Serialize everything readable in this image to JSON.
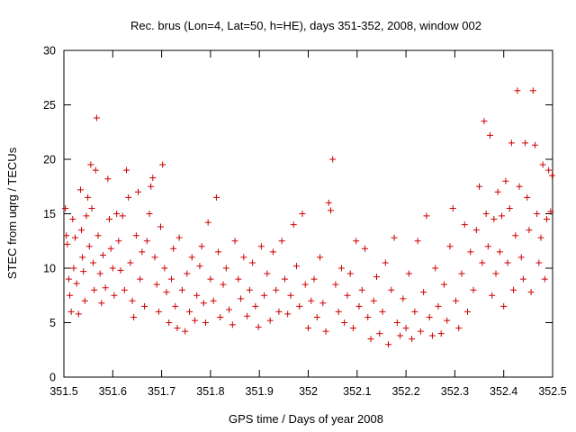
{
  "chart_data": {
    "type": "scatter",
    "title": "Rec. brus (Lon=4, Lat=50, h=HE), days 351-352, 2008, window 002",
    "xlabel": "GPS time / Days of year 2008",
    "ylabel": "STEC from uqrg / TECUs",
    "xlim": [
      351.5,
      352.5
    ],
    "ylim": [
      0,
      30
    ],
    "x_ticks": [
      "351.5",
      "351.6",
      "351.7",
      "351.8",
      "351.9",
      "352",
      "352.1",
      "352.2",
      "352.3",
      "352.4",
      "352.5"
    ],
    "y_ticks": [
      "0",
      "5",
      "10",
      "15",
      "20",
      "25",
      "30"
    ],
    "grid": false,
    "marker": "+",
    "marker_color": "#cc0000",
    "series": [
      {
        "points": [
          [
            351.503,
            15.5
          ],
          [
            351.505,
            13.0
          ],
          [
            351.507,
            12.2
          ],
          [
            351.51,
            9.0
          ],
          [
            351.512,
            7.5
          ],
          [
            351.515,
            6.0
          ],
          [
            351.518,
            14.5
          ],
          [
            351.52,
            10.0
          ],
          [
            351.523,
            12.8
          ],
          [
            351.526,
            8.6
          ],
          [
            351.53,
            5.8
          ],
          [
            351.534,
            17.2
          ],
          [
            351.536,
            13.5
          ],
          [
            351.538,
            11.0
          ],
          [
            351.54,
            9.7
          ],
          [
            351.543,
            7.0
          ],
          [
            351.546,
            14.8
          ],
          [
            351.549,
            16.5
          ],
          [
            351.552,
            12.0
          ],
          [
            351.555,
            19.5
          ],
          [
            351.557,
            15.5
          ],
          [
            351.56,
            10.5
          ],
          [
            351.562,
            8.0
          ],
          [
            351.565,
            19.0
          ],
          [
            351.567,
            23.8
          ],
          [
            351.57,
            13.0
          ],
          [
            351.574,
            9.5
          ],
          [
            351.577,
            6.8
          ],
          [
            351.58,
            11.2
          ],
          [
            351.585,
            8.2
          ],
          [
            351.59,
            18.2
          ],
          [
            351.593,
            14.5
          ],
          [
            351.596,
            11.8
          ],
          [
            351.6,
            10.0
          ],
          [
            351.603,
            7.5
          ],
          [
            351.608,
            15.0
          ],
          [
            351.612,
            12.5
          ],
          [
            351.616,
            9.8
          ],
          [
            351.62,
            14.8
          ],
          [
            351.624,
            8.0
          ],
          [
            351.628,
            19.0
          ],
          [
            351.632,
            16.5
          ],
          [
            351.636,
            10.5
          ],
          [
            351.64,
            7.0
          ],
          [
            351.643,
            5.5
          ],
          [
            351.648,
            13.0
          ],
          [
            351.652,
            17.0
          ],
          [
            351.656,
            9.0
          ],
          [
            351.66,
            11.5
          ],
          [
            351.665,
            6.5
          ],
          [
            351.67,
            12.5
          ],
          [
            351.675,
            15.0
          ],
          [
            351.678,
            17.5
          ],
          [
            351.682,
            18.3
          ],
          [
            351.686,
            11.0
          ],
          [
            351.69,
            8.5
          ],
          [
            351.694,
            6.0
          ],
          [
            351.698,
            13.8
          ],
          [
            351.702,
            19.5
          ],
          [
            351.706,
            10.0
          ],
          [
            351.71,
            7.8
          ],
          [
            351.715,
            5.0
          ],
          [
            351.72,
            9.0
          ],
          [
            351.724,
            11.8
          ],
          [
            351.728,
            6.5
          ],
          [
            351.732,
            4.5
          ],
          [
            351.736,
            12.8
          ],
          [
            351.742,
            8.0
          ],
          [
            351.748,
            4.2
          ],
          [
            351.752,
            9.5
          ],
          [
            351.757,
            6.0
          ],
          [
            351.762,
            11.0
          ],
          [
            351.768,
            5.2
          ],
          [
            351.772,
            7.5
          ],
          [
            351.778,
            10.2
          ],
          [
            351.782,
            12.0
          ],
          [
            351.786,
            6.8
          ],
          [
            351.79,
            5.0
          ],
          [
            351.795,
            14.2
          ],
          [
            351.8,
            9.0
          ],
          [
            351.806,
            7.0
          ],
          [
            351.812,
            16.5
          ],
          [
            351.816,
            11.5
          ],
          [
            351.82,
            5.5
          ],
          [
            351.826,
            8.5
          ],
          [
            351.832,
            10.0
          ],
          [
            351.838,
            6.2
          ],
          [
            351.845,
            4.8
          ],
          [
            351.85,
            12.5
          ],
          [
            351.857,
            9.0
          ],
          [
            351.862,
            7.2
          ],
          [
            351.868,
            11.0
          ],
          [
            351.875,
            5.6
          ],
          [
            351.88,
            8.0
          ],
          [
            351.886,
            10.5
          ],
          [
            351.892,
            6.5
          ],
          [
            351.898,
            4.6
          ],
          [
            351.904,
            12.0
          ],
          [
            351.91,
            7.5
          ],
          [
            351.916,
            9.5
          ],
          [
            351.922,
            5.2
          ],
          [
            351.928,
            11.5
          ],
          [
            351.934,
            8.0
          ],
          [
            351.94,
            6.0
          ],
          [
            351.946,
            12.5
          ],
          [
            351.952,
            9.0
          ],
          [
            351.958,
            5.8
          ],
          [
            351.964,
            7.5
          ],
          [
            351.97,
            14.0
          ],
          [
            351.976,
            10.2
          ],
          [
            351.982,
            6.5
          ],
          [
            351.988,
            15.0
          ],
          [
            351.994,
            8.5
          ],
          [
            352.0,
            4.5
          ],
          [
            352.006,
            7.0
          ],
          [
            352.012,
            9.0
          ],
          [
            352.018,
            5.5
          ],
          [
            352.024,
            11.0
          ],
          [
            352.03,
            6.8
          ],
          [
            352.036,
            4.2
          ],
          [
            352.042,
            16.0
          ],
          [
            352.046,
            15.3
          ],
          [
            352.05,
            20.0
          ],
          [
            352.056,
            8.5
          ],
          [
            352.062,
            6.0
          ],
          [
            352.068,
            10.0
          ],
          [
            352.074,
            5.0
          ],
          [
            352.08,
            7.5
          ],
          [
            352.086,
            9.5
          ],
          [
            352.092,
            4.5
          ],
          [
            352.098,
            12.5
          ],
          [
            352.104,
            6.5
          ],
          [
            352.11,
            8.0
          ],
          [
            352.116,
            11.8
          ],
          [
            352.122,
            5.5
          ],
          [
            352.128,
            3.5
          ],
          [
            352.134,
            7.0
          ],
          [
            352.14,
            9.2
          ],
          [
            352.146,
            4.0
          ],
          [
            352.152,
            6.0
          ],
          [
            352.158,
            10.5
          ],
          [
            352.164,
            3.0
          ],
          [
            352.17,
            8.0
          ],
          [
            352.176,
            12.8
          ],
          [
            352.182,
            5.0
          ],
          [
            352.188,
            3.8
          ],
          [
            352.194,
            7.2
          ],
          [
            352.2,
            4.5
          ],
          [
            352.206,
            9.5
          ],
          [
            352.212,
            3.5
          ],
          [
            352.218,
            6.0
          ],
          [
            352.224,
            12.5
          ],
          [
            352.23,
            4.2
          ],
          [
            352.236,
            7.8
          ],
          [
            352.242,
            14.8
          ],
          [
            352.248,
            5.5
          ],
          [
            352.254,
            3.8
          ],
          [
            352.26,
            10.0
          ],
          [
            352.266,
            6.5
          ],
          [
            352.272,
            4.0
          ],
          [
            352.278,
            8.5
          ],
          [
            352.284,
            5.2
          ],
          [
            352.29,
            12.0
          ],
          [
            352.296,
            15.5
          ],
          [
            352.302,
            7.0
          ],
          [
            352.308,
            4.5
          ],
          [
            352.314,
            9.5
          ],
          [
            352.32,
            14.0
          ],
          [
            352.326,
            6.0
          ],
          [
            352.332,
            11.5
          ],
          [
            352.338,
            8.0
          ],
          [
            352.344,
            13.5
          ],
          [
            352.35,
            17.5
          ],
          [
            352.356,
            10.5
          ],
          [
            352.36,
            23.5
          ],
          [
            352.364,
            15.0
          ],
          [
            352.368,
            12.0
          ],
          [
            352.372,
            22.2
          ],
          [
            352.376,
            7.5
          ],
          [
            352.38,
            14.5
          ],
          [
            352.384,
            9.5
          ],
          [
            352.388,
            17.0
          ],
          [
            352.392,
            11.5
          ],
          [
            352.396,
            14.8
          ],
          [
            352.4,
            6.5
          ],
          [
            352.404,
            18.0
          ],
          [
            352.408,
            10.5
          ],
          [
            352.412,
            15.5
          ],
          [
            352.416,
            21.5
          ],
          [
            352.42,
            8.0
          ],
          [
            352.424,
            13.0
          ],
          [
            352.428,
            26.3
          ],
          [
            352.432,
            17.5
          ],
          [
            352.436,
            11.0
          ],
          [
            352.44,
            9.0
          ],
          [
            352.444,
            21.5
          ],
          [
            352.448,
            16.5
          ],
          [
            352.452,
            13.5
          ],
          [
            352.456,
            7.8
          ],
          [
            352.46,
            26.3
          ],
          [
            352.464,
            21.3
          ],
          [
            352.468,
            15.0
          ],
          [
            352.472,
            10.5
          ],
          [
            352.476,
            12.8
          ],
          [
            352.48,
            19.5
          ],
          [
            352.484,
            9.0
          ],
          [
            352.488,
            14.5
          ],
          [
            352.492,
            19.0
          ],
          [
            352.496,
            15.2
          ],
          [
            352.499,
            18.5
          ]
        ]
      }
    ]
  }
}
